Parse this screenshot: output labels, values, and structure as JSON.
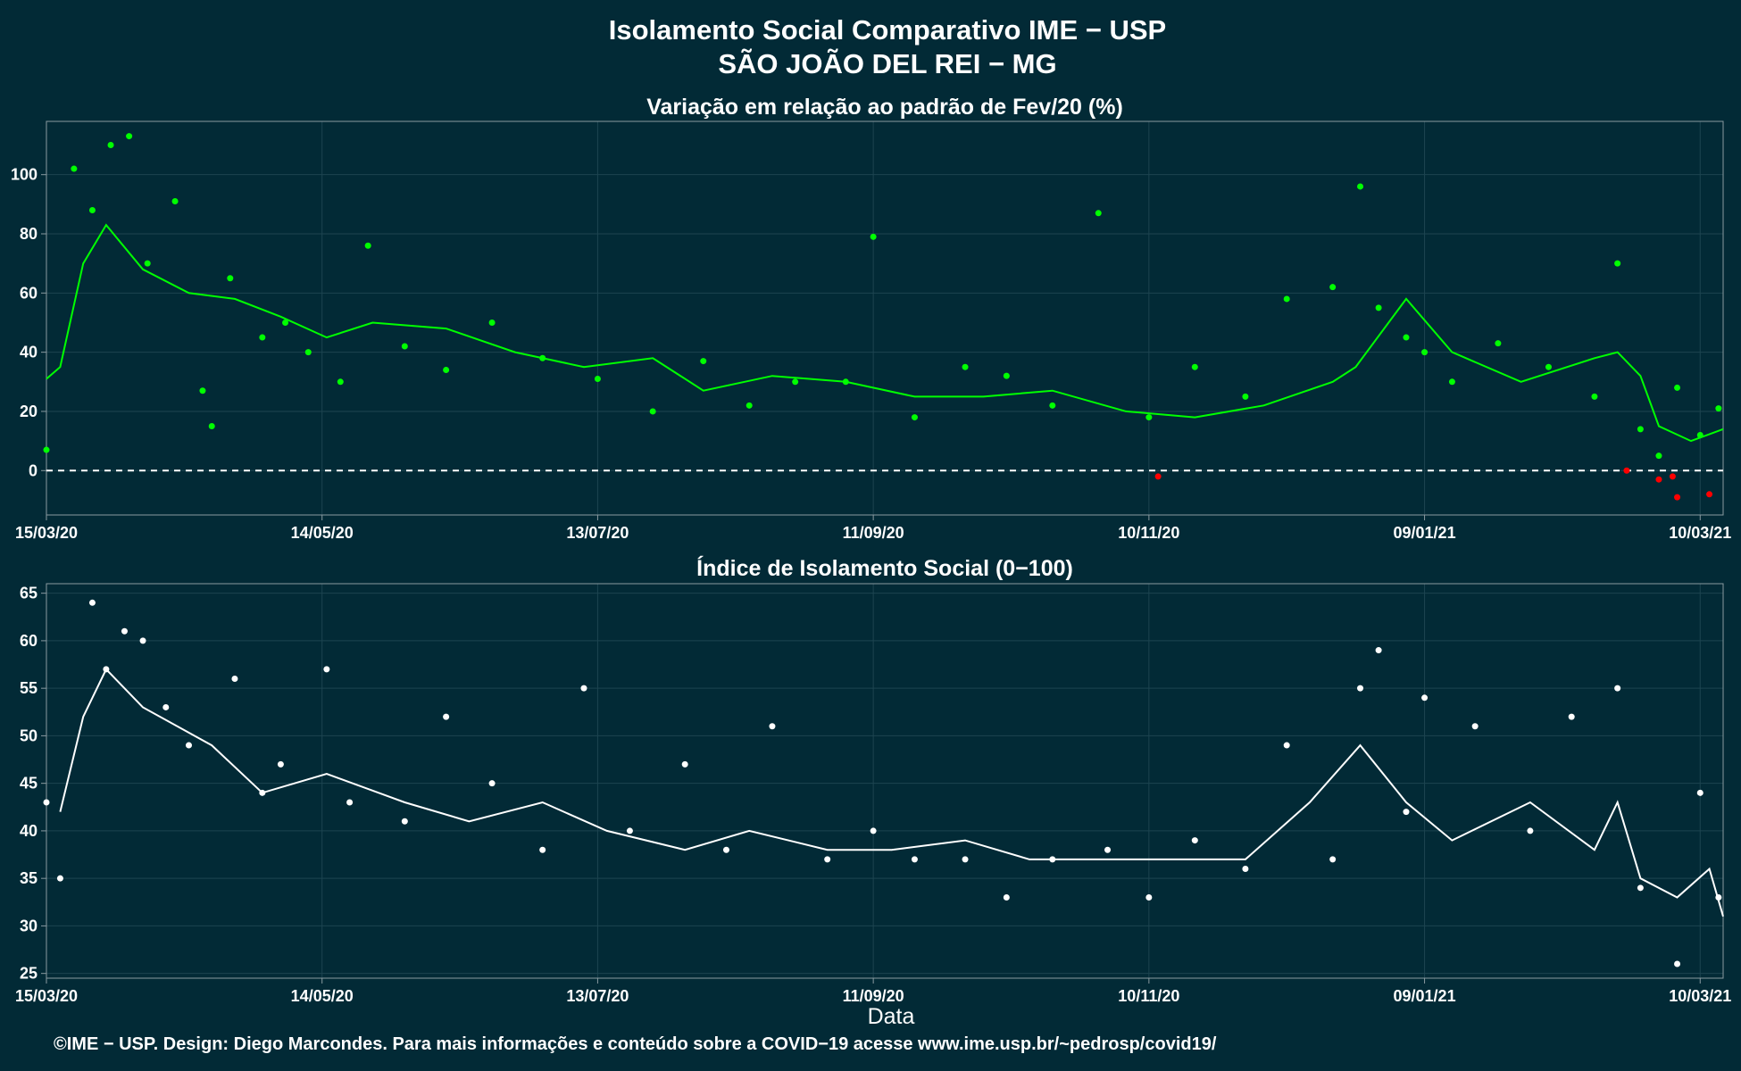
{
  "header": {
    "title": "Isolamento Social Comparativo IME − USP",
    "subtitle": "SÃO JOÃO DEL REI − MG"
  },
  "footer": {
    "credit": "©IME − USP. Design: Diego Marcondes. Para mais informações e conteúdo sobre a COVID−19 acesse www.ime.usp.br/~pedrosp/covid19/"
  },
  "colors": {
    "background": "#022a36",
    "positive_points": "#00ff00",
    "negative_points": "#ff0000",
    "index_points": "#ffffff"
  },
  "chart_data": [
    {
      "type": "scatter",
      "title": "Variação em relação ao padrão de Fev/20 (%)",
      "xlabel": "",
      "ylabel": "",
      "x_ticks": [
        "15/03/20",
        "14/05/20",
        "13/07/20",
        "11/09/20",
        "10/11/20",
        "09/01/21",
        "10/03/21"
      ],
      "y_ticks": [
        0,
        20,
        40,
        60,
        80,
        100
      ],
      "xlim": [
        "2020-03-15",
        "2021-03-15"
      ],
      "ylim": [
        -15,
        118
      ],
      "reference_line": 0,
      "grid": true,
      "series": [
        {
          "kind": "points",
          "x": [
            "2020-03-15",
            "2020-03-21",
            "2020-03-25",
            "2020-03-29",
            "2020-04-02",
            "2020-04-06",
            "2020-04-12",
            "2020-04-18",
            "2020-04-20",
            "2020-04-24",
            "2020-05-01",
            "2020-05-06",
            "2020-05-11",
            "2020-05-18",
            "2020-05-24",
            "2020-06-01",
            "2020-06-10",
            "2020-06-20",
            "2020-07-01",
            "2020-07-13",
            "2020-07-25",
            "2020-08-05",
            "2020-08-15",
            "2020-08-25",
            "2020-09-05",
            "2020-09-11",
            "2020-09-20",
            "2020-10-01",
            "2020-10-10",
            "2020-10-20",
            "2020-10-30",
            "2020-11-10",
            "2020-11-20",
            "2020-12-01",
            "2020-12-10",
            "2020-12-20",
            "2020-12-26",
            "2020-12-30",
            "2021-01-05",
            "2021-01-09",
            "2021-01-15",
            "2021-01-25",
            "2021-02-05",
            "2021-02-15",
            "2021-02-20",
            "2021-02-25",
            "2021-03-01",
            "2021-03-05",
            "2021-03-10",
            "2021-03-14"
          ],
          "values": [
            7,
            102,
            88,
            110,
            113,
            70,
            91,
            27,
            15,
            65,
            45,
            50,
            40,
            30,
            76,
            42,
            34,
            50,
            38,
            31,
            20,
            37,
            22,
            30,
            30,
            79,
            18,
            35,
            32,
            22,
            87,
            18,
            35,
            25,
            58,
            62,
            96,
            55,
            45,
            40,
            30,
            43,
            35,
            25,
            70,
            14,
            5,
            28,
            12,
            21
          ]
        },
        {
          "kind": "negative-points",
          "x": [
            "2020-11-12",
            "2021-02-22",
            "2021-03-01",
            "2021-03-04",
            "2021-03-05",
            "2021-03-12"
          ],
          "values": [
            -2,
            0,
            -3,
            -2,
            -9,
            -8
          ]
        },
        {
          "kind": "moving-average",
          "x": [
            "2020-03-15",
            "2020-03-18",
            "2020-03-23",
            "2020-03-28",
            "2020-04-05",
            "2020-04-15",
            "2020-04-25",
            "2020-05-05",
            "2020-05-15",
            "2020-05-25",
            "2020-06-10",
            "2020-06-25",
            "2020-07-10",
            "2020-07-25",
            "2020-08-05",
            "2020-08-20",
            "2020-09-05",
            "2020-09-20",
            "2020-10-05",
            "2020-10-20",
            "2020-11-05",
            "2020-11-20",
            "2020-12-05",
            "2020-12-20",
            "2020-12-25",
            "2021-01-05",
            "2021-01-15",
            "2021-01-30",
            "2021-02-15",
            "2021-02-20",
            "2021-02-25",
            "2021-03-01",
            "2021-03-08",
            "2021-03-15"
          ],
          "values": [
            31,
            35,
            70,
            83,
            68,
            60,
            58,
            52,
            45,
            50,
            48,
            40,
            35,
            38,
            27,
            32,
            30,
            25,
            25,
            27,
            20,
            18,
            22,
            30,
            35,
            58,
            40,
            30,
            38,
            40,
            32,
            15,
            10,
            14
          ]
        }
      ]
    },
    {
      "type": "scatter",
      "title": "Índice de Isolamento Social (0−100)",
      "xlabel": "Data",
      "ylabel": "",
      "x_ticks": [
        "15/03/20",
        "14/05/20",
        "13/07/20",
        "11/09/20",
        "10/11/20",
        "09/01/21",
        "10/03/21"
      ],
      "y_ticks": [
        25,
        30,
        35,
        40,
        45,
        50,
        55,
        60,
        65
      ],
      "xlim": [
        "2020-03-15",
        "2021-03-15"
      ],
      "ylim": [
        24.5,
        66
      ],
      "grid": true,
      "series": [
        {
          "kind": "points",
          "x": [
            "2020-03-15",
            "2020-03-18",
            "2020-03-25",
            "2020-03-28",
            "2020-04-01",
            "2020-04-05",
            "2020-04-10",
            "2020-04-15",
            "2020-04-25",
            "2020-05-01",
            "2020-05-05",
            "2020-05-15",
            "2020-05-20",
            "2020-06-01",
            "2020-06-10",
            "2020-06-20",
            "2020-07-01",
            "2020-07-10",
            "2020-07-20",
            "2020-08-01",
            "2020-08-10",
            "2020-08-20",
            "2020-09-01",
            "2020-09-11",
            "2020-09-20",
            "2020-10-01",
            "2020-10-10",
            "2020-10-20",
            "2020-11-01",
            "2020-11-10",
            "2020-11-20",
            "2020-12-01",
            "2020-12-10",
            "2020-12-20",
            "2020-12-26",
            "2020-12-30",
            "2021-01-05",
            "2021-01-09",
            "2021-01-20",
            "2021-02-01",
            "2021-02-10",
            "2021-02-20",
            "2021-02-25",
            "2021-03-05",
            "2021-03-10",
            "2021-03-14"
          ],
          "values": [
            43,
            35,
            64,
            57,
            61,
            60,
            53,
            49,
            56,
            44,
            47,
            57,
            43,
            41,
            52,
            45,
            38,
            55,
            40,
            47,
            38,
            51,
            37,
            40,
            37,
            37,
            33,
            37,
            38,
            33,
            39,
            36,
            49,
            37,
            55,
            59,
            42,
            54,
            51,
            40,
            52,
            55,
            34,
            26,
            44,
            33
          ]
        },
        {
          "kind": "moving-average",
          "x": [
            "2020-03-18",
            "2020-03-23",
            "2020-03-28",
            "2020-04-05",
            "2020-04-20",
            "2020-05-01",
            "2020-05-15",
            "2020-06-01",
            "2020-06-15",
            "2020-07-01",
            "2020-07-15",
            "2020-08-01",
            "2020-08-15",
            "2020-09-01",
            "2020-09-15",
            "2020-10-01",
            "2020-10-15",
            "2020-11-01",
            "2020-11-15",
            "2020-12-01",
            "2020-12-15",
            "2020-12-26",
            "2021-01-05",
            "2021-01-15",
            "2021-02-01",
            "2021-02-15",
            "2021-02-20",
            "2021-02-25",
            "2021-03-05",
            "2021-03-12",
            "2021-03-15"
          ],
          "values": [
            42,
            52,
            57,
            53,
            49,
            44,
            46,
            43,
            41,
            43,
            40,
            38,
            40,
            38,
            38,
            39,
            37,
            37,
            37,
            37,
            43,
            49,
            43,
            39,
            43,
            38,
            43,
            35,
            33,
            36,
            31
          ]
        }
      ]
    }
  ]
}
